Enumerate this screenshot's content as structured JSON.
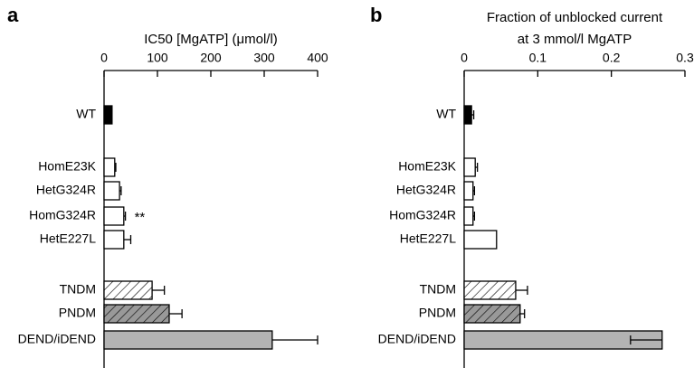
{
  "chart_data": [
    {
      "type": "bar",
      "orientation": "horizontal",
      "panel_label": "a",
      "title": [
        "IC50 [MgATP] (μmol/l)"
      ],
      "categories": [
        "WT",
        "HomE23K",
        "HetG324R",
        "HomG324R",
        "HetE227L",
        "TNDM",
        "PNDM",
        "DEND/iDEND"
      ],
      "values": [
        15,
        20,
        29,
        37,
        37,
        90,
        122,
        315
      ],
      "errors": [
        null,
        2,
        3,
        3,
        13,
        23,
        24,
        85
      ],
      "error_sides": [
        null,
        "+",
        "+",
        "+",
        "+",
        "+",
        "+",
        "+"
      ],
      "colors": [
        "#000000",
        "#ffffff",
        "#ffffff",
        "#ffffff",
        "#ffffff",
        "#ffffff",
        "#999999",
        "#b3b3b3"
      ],
      "hatched": [
        false,
        false,
        false,
        false,
        false,
        true,
        true,
        false
      ],
      "annotation": {
        "text": "**",
        "category": 3
      },
      "xlim": [
        0,
        400
      ],
      "xticks": [
        0,
        100,
        200,
        300,
        400
      ]
    },
    {
      "type": "bar",
      "orientation": "horizontal",
      "panel_label": "b",
      "title": [
        "Fraction of unblocked current",
        "at 3 mmol/l MgATP"
      ],
      "categories": [
        "WT",
        "HomE23K",
        "HetG324R",
        "HomG324R",
        "HetE227L",
        "TNDM",
        "PNDM",
        "DEND/iDEND"
      ],
      "values": [
        0.01,
        0.015,
        0.012,
        0.012,
        0.044,
        0.07,
        0.076,
        0.269
      ],
      "errors": [
        0.003,
        0.003,
        0.002,
        0.002,
        null,
        0.016,
        0.006,
        0.043
      ],
      "error_sides": [
        "+",
        "+",
        "+",
        "+",
        null,
        "+",
        "+",
        "-"
      ],
      "colors": [
        "#000000",
        "#ffffff",
        "#ffffff",
        "#ffffff",
        "#ffffff",
        "#ffffff",
        "#999999",
        "#b3b3b3"
      ],
      "hatched": [
        false,
        false,
        false,
        false,
        false,
        true,
        true,
        false
      ],
      "xlim": [
        0,
        0.3
      ],
      "xticks": [
        0,
        0.1,
        0.2,
        0.3
      ]
    }
  ]
}
